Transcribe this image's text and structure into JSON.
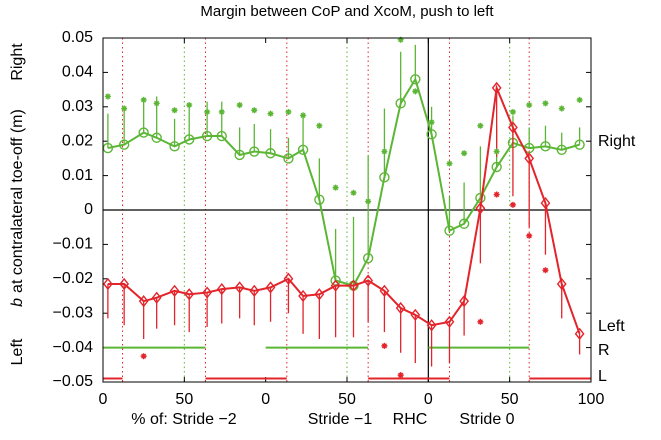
{
  "chart_data": {
    "type": "line",
    "title": "Margin between CoP and XcoM, push to left",
    "xlabels": [
      "% of: Stride −2",
      "Stride −1",
      "RHC",
      "Stride 0"
    ],
    "ylabel": {
      "left": "Left",
      "symbol": "b",
      "text": "at contralateral toe-off (m)",
      "right": "Right"
    },
    "annotations": [
      "Right",
      "Left",
      "R",
      "L"
    ],
    "xlim": [
      0,
      300
    ],
    "ylim": [
      -0.05,
      0.05
    ],
    "xticks": [
      0,
      50,
      {
        "value": 100,
        "label": "0"
      },
      {
        "value": 150,
        "label": "50"
      },
      {
        "value": 200,
        "label": "0"
      },
      {
        "value": 250,
        "label": "50"
      },
      {
        "value": 300,
        "label": "100"
      }
    ],
    "yticks": [
      {
        "value": -0.05,
        "label": "−0.05"
      },
      {
        "value": -0.04,
        "label": "−0.04"
      },
      {
        "value": -0.03,
        "label": "−0.03"
      },
      {
        "value": -0.02,
        "label": "−0.02"
      },
      {
        "value": -0.01,
        "label": "−0.01"
      },
      0,
      0.01,
      0.02,
      0.03,
      0.04,
      0.05
    ],
    "x": [
      3,
      13,
      25,
      33,
      44,
      53,
      64,
      73,
      84,
      93,
      103,
      114,
      123,
      133,
      143,
      154,
      163,
      173,
      183,
      192,
      202,
      213,
      222,
      232,
      242,
      252,
      262,
      272,
      282,
      293
    ],
    "series": [
      {
        "color": "#5cb636",
        "marker": "o",
        "line": true,
        "error_side": "up",
        "values": [
          0.018,
          0.019,
          0.0225,
          0.021,
          0.0185,
          0.0205,
          0.0215,
          0.0215,
          0.016,
          0.017,
          0.0165,
          0.015,
          0.0175,
          0.003,
          -0.0205,
          -0.022,
          -0.014,
          0.0095,
          0.031,
          0.038,
          0.022,
          -0.006,
          -0.004,
          0.0035,
          0.0125,
          0.0195,
          0.018,
          0.0185,
          0.0175,
          0.019
        ],
        "errors": [
          0.01,
          0.01,
          0.01,
          0.012,
          0.008,
          0.01,
          0.01,
          0.01,
          0.008,
          0.008,
          0.007,
          0.006,
          0.01,
          0.012,
          0.015,
          0.02,
          0.03,
          0.02,
          0.015,
          0.01,
          0.008,
          0.01,
          0.012,
          0.015,
          0.012,
          0.008,
          0.006,
          0.006,
          0.005,
          0.005
        ]
      },
      {
        "color": "#e3242b",
        "marker": "d",
        "line": true,
        "error_side": "down",
        "values": [
          -0.0215,
          -0.0215,
          -0.0265,
          -0.0255,
          -0.0235,
          -0.0245,
          -0.024,
          -0.023,
          -0.0225,
          -0.0235,
          -0.0225,
          -0.02,
          -0.025,
          -0.0245,
          -0.022,
          -0.022,
          -0.0205,
          -0.0235,
          -0.0285,
          -0.0305,
          -0.0335,
          -0.0325,
          -0.0265,
          0.0005,
          0.0355,
          0.024,
          0.015,
          0.002,
          -0.0215,
          -0.036
        ],
        "errors": [
          0.01,
          0.012,
          0.011,
          0.009,
          0.01,
          0.011,
          0.01,
          0.01,
          0.009,
          0.01,
          0.01,
          0.01,
          0.011,
          0.013,
          0.015,
          0.015,
          0.012,
          0.012,
          0.013,
          0.014,
          0.012,
          0.012,
          0.01,
          0.016,
          0.02,
          0.02,
          0.02,
          0.015,
          0.01,
          0.006
        ]
      },
      {
        "color": "#5cb636",
        "marker": "*",
        "line": false,
        "values": [
          0.033,
          0.0295,
          0.032,
          0.031,
          0.029,
          0.0305,
          0.0285,
          0.0285,
          0.0305,
          0.029,
          0.028,
          0.0285,
          0.0275,
          0.0245,
          0.0065,
          0.005,
          0.0025,
          0.017,
          0.0495,
          0.0345,
          0.0255,
          0.0135,
          0.0165,
          0.0245,
          0.017,
          0.0285,
          0.0305,
          0.031,
          0.0295,
          0.032
        ]
      },
      {
        "color": "#e3242b",
        "marker": "*",
        "line": false,
        "values": [
          null,
          null,
          -0.0425,
          null,
          null,
          null,
          null,
          null,
          null,
          null,
          null,
          null,
          null,
          null,
          null,
          null,
          null,
          -0.0395,
          -0.048,
          null,
          null,
          null,
          null,
          -0.0325,
          0.0045,
          0.0015,
          -0.0075,
          -0.0175,
          null,
          null
        ]
      }
    ],
    "phase_bars": [
      {
        "color": "#5cb636",
        "y": -0.04,
        "ranges": [
          [
            0,
            63
          ],
          [
            100,
            163
          ],
          [
            200,
            262
          ]
        ]
      },
      {
        "color": "#e3242b",
        "y": -0.049,
        "ranges": [
          [
            0,
            12
          ],
          [
            63,
            113
          ],
          [
            163,
            213
          ],
          [
            262,
            300
          ]
        ]
      }
    ],
    "vlines": [
      {
        "color": "#e3242b",
        "x": [
          12,
          63,
          113,
          163,
          213,
          262
        ]
      },
      {
        "color": "#5cb636",
        "x": [
          50,
          150,
          250
        ]
      }
    ],
    "zero_lines": {
      "x": 200,
      "y": 0
    }
  }
}
